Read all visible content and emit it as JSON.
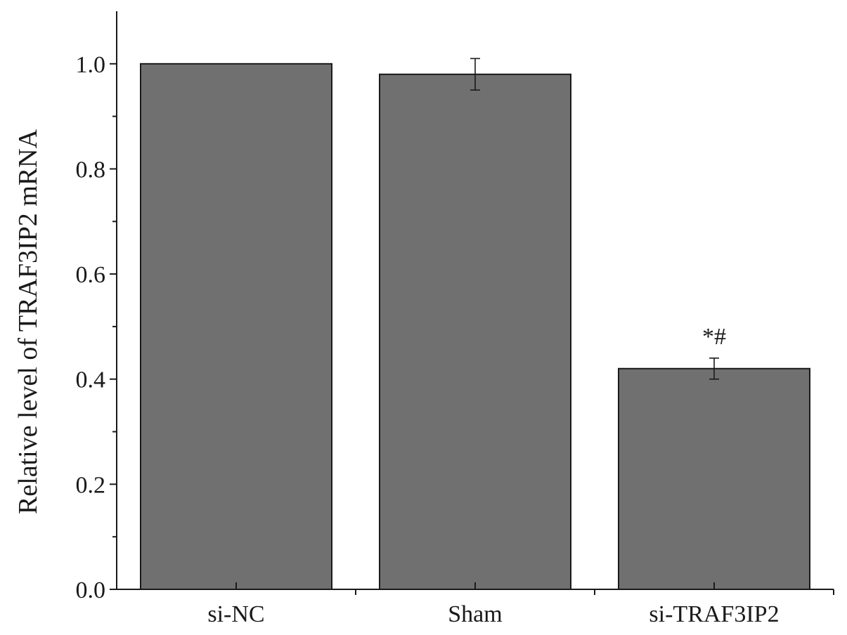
{
  "chart_data": {
    "type": "bar",
    "title": "",
    "xlabel": "",
    "ylabel": "Relative level of TRAF3IP2 mRNA",
    "categories": [
      "si-NC",
      "Sham",
      "si-TRAF3IP2"
    ],
    "values": [
      1.0,
      0.98,
      0.42
    ],
    "errors": [
      null,
      0.03,
      0.02
    ],
    "annotations": [
      null,
      null,
      "*#"
    ],
    "ylim": [
      0,
      1.1
    ],
    "yticks": [
      "0.0",
      "0.2",
      "0.4",
      "0.6",
      "0.8",
      "1.0"
    ],
    "grid": false,
    "bar_color": "#707070",
    "edge_color": "#1a1a1a"
  }
}
